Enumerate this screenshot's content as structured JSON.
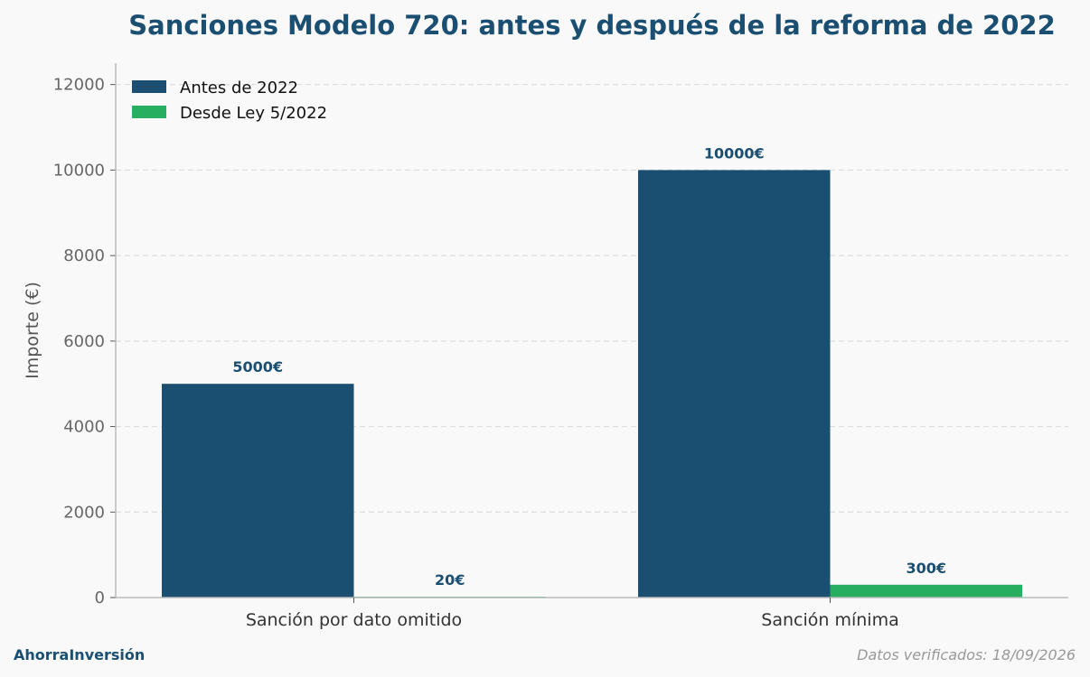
{
  "footer": {
    "brand": "AhorraInversión",
    "note": "Datos verificados: 18/09/2026"
  },
  "colors": {
    "series_before": "#1b4f72",
    "series_after": "#27ae60",
    "grid": "#dddddd",
    "axis": "#bbbbbb"
  },
  "chart_data": {
    "type": "bar",
    "title": "Sanciones Modelo 720: antes y después de la reforma de 2022",
    "xlabel": "",
    "ylabel": "Importe (€)",
    "categories": [
      "Sanción por dato omitido",
      "Sanción mínima"
    ],
    "series": [
      {
        "name": "Antes de 2022",
        "values": [
          5000,
          10000
        ],
        "labels": [
          "5000€",
          "10000€"
        ]
      },
      {
        "name": "Desde Ley 5/2022",
        "values": [
          20,
          300
        ],
        "labels": [
          "20€",
          "300€"
        ]
      }
    ],
    "ylim": [
      0,
      12500
    ],
    "yticks": [
      0,
      2000,
      4000,
      6000,
      8000,
      10000,
      12000
    ],
    "grid": true,
    "legend_position": "top-left"
  }
}
